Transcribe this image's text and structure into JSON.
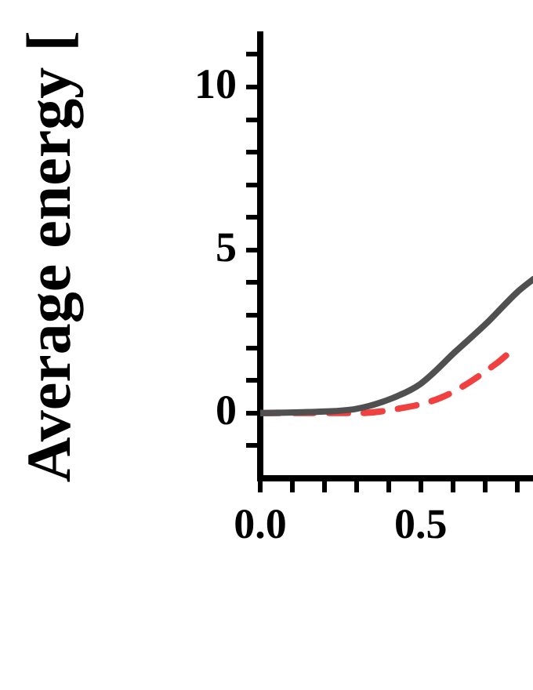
{
  "chart_data": {
    "type": "line",
    "ylabel": "Average energy [",
    "xlim": [
      0,
      0.85
    ],
    "ylim": [
      -2,
      11.6
    ],
    "xticks": [
      {
        "value": 0,
        "label": "0.0"
      },
      {
        "value": 0.1,
        "label": null
      },
      {
        "value": 0.2,
        "label": null
      },
      {
        "value": 0.3,
        "label": null
      },
      {
        "value": 0.4,
        "label": null
      },
      {
        "value": 0.5,
        "label": "0.5"
      },
      {
        "value": 0.6,
        "label": null
      },
      {
        "value": 0.7,
        "label": null
      },
      {
        "value": 0.8,
        "label": null
      }
    ],
    "yticks": [
      {
        "value": -1,
        "label": null
      },
      0,
      {
        "value": 1,
        "label": null
      },
      {
        "value": 2,
        "label": null
      },
      {
        "value": 3,
        "label": null
      },
      {
        "value": 4,
        "label": null
      },
      5,
      {
        "value": 6,
        "label": null
      },
      {
        "value": 7,
        "label": null
      },
      {
        "value": 8,
        "label": null
      },
      {
        "value": 9,
        "label": null
      },
      10,
      {
        "value": 11,
        "label": null
      }
    ],
    "grid": false,
    "legend": false,
    "marker": "none",
    "series": [
      {
        "color": "#505050",
        "line_style": "solid",
        "x": [
          0,
          0.15,
          0.3,
          0.41,
          0.5,
          0.61,
          0.71,
          0.8,
          0.85
        ],
        "values": [
          0,
          0.03,
          0.13,
          0.45,
          0.9,
          1.9,
          2.8,
          3.7,
          4.1
        ]
      },
      {
        "color": "#f04040",
        "line_style": "dashed",
        "x": [
          0,
          0.15,
          0.3,
          0.41,
          0.57,
          0.74,
          0.77
        ],
        "values": [
          0,
          0,
          0,
          0.1,
          0.5,
          1.55,
          1.8
        ]
      }
    ]
  }
}
